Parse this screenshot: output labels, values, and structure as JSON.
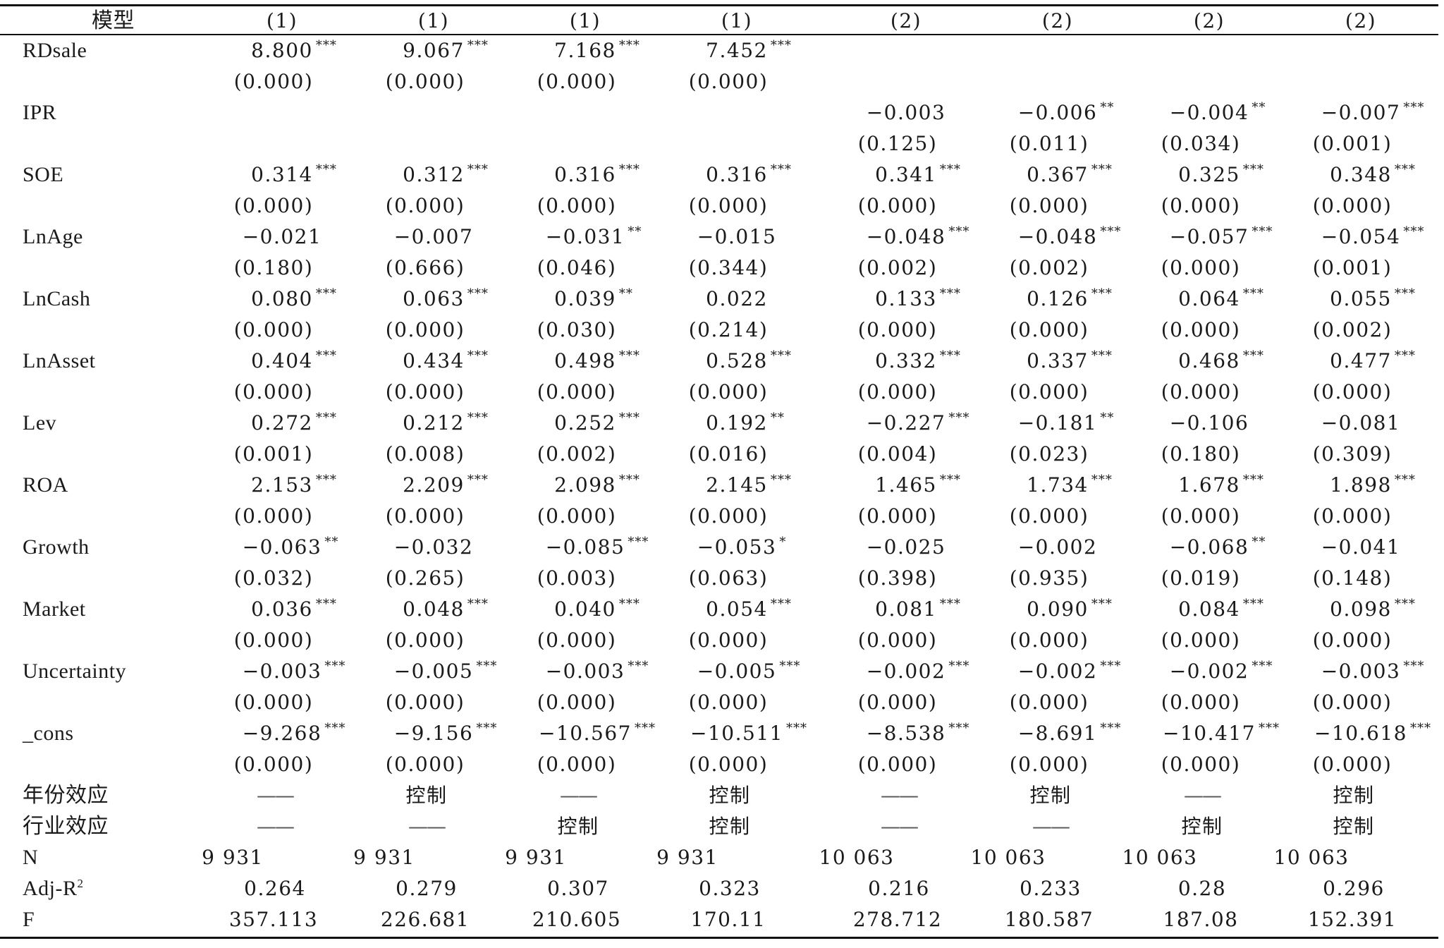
{
  "table": {
    "header": {
      "label": "模型",
      "columns": [
        "(1)",
        "(1)",
        "(1)",
        "(1)",
        "(2)",
        "(2)",
        "(2)",
        "(2)"
      ]
    },
    "variables": [
      {
        "name": "RDsale",
        "coef": [
          {
            "v": "8.800",
            "s": "***"
          },
          {
            "v": "9.067",
            "s": "***"
          },
          {
            "v": "7.168",
            "s": "***"
          },
          {
            "v": "7.452",
            "s": "***"
          },
          {
            "v": "",
            "s": ""
          },
          {
            "v": "",
            "s": ""
          },
          {
            "v": "",
            "s": ""
          },
          {
            "v": "",
            "s": ""
          }
        ],
        "p": [
          "(0.000)",
          "(0.000)",
          "(0.000)",
          "(0.000)",
          "",
          "",
          "",
          ""
        ]
      },
      {
        "name": "IPR",
        "coef": [
          {
            "v": "",
            "s": ""
          },
          {
            "v": "",
            "s": ""
          },
          {
            "v": "",
            "s": ""
          },
          {
            "v": "",
            "s": ""
          },
          {
            "v": "−0.003",
            "s": ""
          },
          {
            "v": "−0.006",
            "s": "**"
          },
          {
            "v": "−0.004",
            "s": "**"
          },
          {
            "v": "−0.007",
            "s": "***"
          }
        ],
        "p": [
          "",
          "",
          "",
          "",
          "(0.125)",
          "(0.011)",
          "(0.034)",
          "(0.001)"
        ]
      },
      {
        "name": "SOE",
        "coef": [
          {
            "v": "0.314",
            "s": "***"
          },
          {
            "v": "0.312",
            "s": "***"
          },
          {
            "v": "0.316",
            "s": "***"
          },
          {
            "v": "0.316",
            "s": "***"
          },
          {
            "v": "0.341",
            "s": "***"
          },
          {
            "v": "0.367",
            "s": "***"
          },
          {
            "v": "0.325",
            "s": "***"
          },
          {
            "v": "0.348",
            "s": "***"
          }
        ],
        "p": [
          "(0.000)",
          "(0.000)",
          "(0.000)",
          "(0.000)",
          "(0.000)",
          "(0.000)",
          "(0.000)",
          "(0.000)"
        ]
      },
      {
        "name": "LnAge",
        "coef": [
          {
            "v": "−0.021",
            "s": ""
          },
          {
            "v": "−0.007",
            "s": ""
          },
          {
            "v": "−0.031",
            "s": "**"
          },
          {
            "v": "−0.015",
            "s": ""
          },
          {
            "v": "−0.048",
            "s": "***"
          },
          {
            "v": "−0.048",
            "s": "***"
          },
          {
            "v": "−0.057",
            "s": "***"
          },
          {
            "v": "−0.054",
            "s": "***"
          }
        ],
        "p": [
          "(0.180)",
          "(0.666)",
          "(0.046)",
          "(0.344)",
          "(0.002)",
          "(0.002)",
          "(0.000)",
          "(0.001)"
        ]
      },
      {
        "name": "LnCash",
        "coef": [
          {
            "v": "0.080",
            "s": "***"
          },
          {
            "v": "0.063",
            "s": "***"
          },
          {
            "v": "0.039",
            "s": "**"
          },
          {
            "v": "0.022",
            "s": ""
          },
          {
            "v": "0.133",
            "s": "***"
          },
          {
            "v": "0.126",
            "s": "***"
          },
          {
            "v": "0.064",
            "s": "***"
          },
          {
            "v": "0.055",
            "s": "***"
          }
        ],
        "p": [
          "(0.000)",
          "(0.000)",
          "(0.030)",
          "(0.214)",
          "(0.000)",
          "(0.000)",
          "(0.000)",
          "(0.002)"
        ]
      },
      {
        "name": "LnAsset",
        "coef": [
          {
            "v": "0.404",
            "s": "***"
          },
          {
            "v": "0.434",
            "s": "***"
          },
          {
            "v": "0.498",
            "s": "***"
          },
          {
            "v": "0.528",
            "s": "***"
          },
          {
            "v": "0.332",
            "s": "***"
          },
          {
            "v": "0.337",
            "s": "***"
          },
          {
            "v": "0.468",
            "s": "***"
          },
          {
            "v": "0.477",
            "s": "***"
          }
        ],
        "p": [
          "(0.000)",
          "(0.000)",
          "(0.000)",
          "(0.000)",
          "(0.000)",
          "(0.000)",
          "(0.000)",
          "(0.000)"
        ]
      },
      {
        "name": "Lev",
        "coef": [
          {
            "v": "0.272",
            "s": "***"
          },
          {
            "v": "0.212",
            "s": "***"
          },
          {
            "v": "0.252",
            "s": "***"
          },
          {
            "v": "0.192",
            "s": "**"
          },
          {
            "v": "−0.227",
            "s": "***"
          },
          {
            "v": "−0.181",
            "s": "**"
          },
          {
            "v": "−0.106",
            "s": ""
          },
          {
            "v": "−0.081",
            "s": ""
          }
        ],
        "p": [
          "(0.001)",
          "(0.008)",
          "(0.002)",
          "(0.016)",
          "(0.004)",
          "(0.023)",
          "(0.180)",
          "(0.309)"
        ]
      },
      {
        "name": "ROA",
        "coef": [
          {
            "v": "2.153",
            "s": "***"
          },
          {
            "v": "2.209",
            "s": "***"
          },
          {
            "v": "2.098",
            "s": "***"
          },
          {
            "v": "2.145",
            "s": "***"
          },
          {
            "v": "1.465",
            "s": "***"
          },
          {
            "v": "1.734",
            "s": "***"
          },
          {
            "v": "1.678",
            "s": "***"
          },
          {
            "v": "1.898",
            "s": "***"
          }
        ],
        "p": [
          "(0.000)",
          "(0.000)",
          "(0.000)",
          "(0.000)",
          "(0.000)",
          "(0.000)",
          "(0.000)",
          "(0.000)"
        ]
      },
      {
        "name": "Growth",
        "coef": [
          {
            "v": "−0.063",
            "s": "**"
          },
          {
            "v": "−0.032",
            "s": ""
          },
          {
            "v": "−0.085",
            "s": "***"
          },
          {
            "v": "−0.053",
            "s": "*"
          },
          {
            "v": "−0.025",
            "s": ""
          },
          {
            "v": "−0.002",
            "s": ""
          },
          {
            "v": "−0.068",
            "s": "**"
          },
          {
            "v": "−0.041",
            "s": ""
          }
        ],
        "p": [
          "(0.032)",
          "(0.265)",
          "(0.003)",
          "(0.063)",
          "(0.398)",
          "(0.935)",
          "(0.019)",
          "(0.148)"
        ]
      },
      {
        "name": "Market",
        "coef": [
          {
            "v": "0.036",
            "s": "***"
          },
          {
            "v": "0.048",
            "s": "***"
          },
          {
            "v": "0.040",
            "s": "***"
          },
          {
            "v": "0.054",
            "s": "***"
          },
          {
            "v": "0.081",
            "s": "***"
          },
          {
            "v": "0.090",
            "s": "***"
          },
          {
            "v": "0.084",
            "s": "***"
          },
          {
            "v": "0.098",
            "s": "***"
          }
        ],
        "p": [
          "(0.000)",
          "(0.000)",
          "(0.000)",
          "(0.000)",
          "(0.000)",
          "(0.000)",
          "(0.000)",
          "(0.000)"
        ]
      },
      {
        "name": "Uncertainty",
        "coef": [
          {
            "v": "−0.003",
            "s": "***"
          },
          {
            "v": "−0.005",
            "s": "***"
          },
          {
            "v": "−0.003",
            "s": "***"
          },
          {
            "v": "−0.005",
            "s": "***"
          },
          {
            "v": "−0.002",
            "s": "***"
          },
          {
            "v": "−0.002",
            "s": "***"
          },
          {
            "v": "−0.002",
            "s": "***"
          },
          {
            "v": "−0.003",
            "s": "***"
          }
        ],
        "p": [
          "(0.000)",
          "(0.000)",
          "(0.000)",
          "(0.000)",
          "(0.000)",
          "(0.000)",
          "(0.000)",
          "(0.000)"
        ]
      },
      {
        "name": "_cons",
        "coef": [
          {
            "v": "−9.268",
            "s": "***"
          },
          {
            "v": "−9.156",
            "s": "***"
          },
          {
            "v": "−10.567",
            "s": "***"
          },
          {
            "v": "−10.511",
            "s": "***"
          },
          {
            "v": "−8.538",
            "s": "***"
          },
          {
            "v": "−8.691",
            "s": "***"
          },
          {
            "v": "−10.417",
            "s": "***"
          },
          {
            "v": "−10.618",
            "s": "***"
          }
        ],
        "p": [
          "(0.000)",
          "(0.000)",
          "(0.000)",
          "(0.000)",
          "(0.000)",
          "(0.000)",
          "(0.000)",
          "(0.000)"
        ]
      }
    ],
    "effects": [
      {
        "name": "年份效应",
        "values": [
          "——",
          "控制",
          "——",
          "控制",
          "——",
          "控制",
          "——",
          "控制"
        ]
      },
      {
        "name": "行业效应",
        "values": [
          "——",
          "——",
          "控制",
          "控制",
          "——",
          "——",
          "控制",
          "控制"
        ]
      }
    ],
    "stats": {
      "n": {
        "name": "N",
        "values": [
          "9 931",
          "9 931",
          "9 931",
          "9 931",
          "10 063",
          "10 063",
          "10 063",
          "10 063"
        ]
      },
      "adj_r2": {
        "name_base": "Adj-R",
        "name_sup": "2",
        "values": [
          "0.264",
          "0.279",
          "0.307",
          "0.323",
          "0.216",
          "0.233",
          "0.28",
          "0.296"
        ]
      },
      "f": {
        "name": "F",
        "values": [
          "357.113",
          "226.681",
          "210.605",
          "170.11",
          "278.712",
          "180.587",
          "187.08",
          "152.391"
        ]
      }
    }
  }
}
